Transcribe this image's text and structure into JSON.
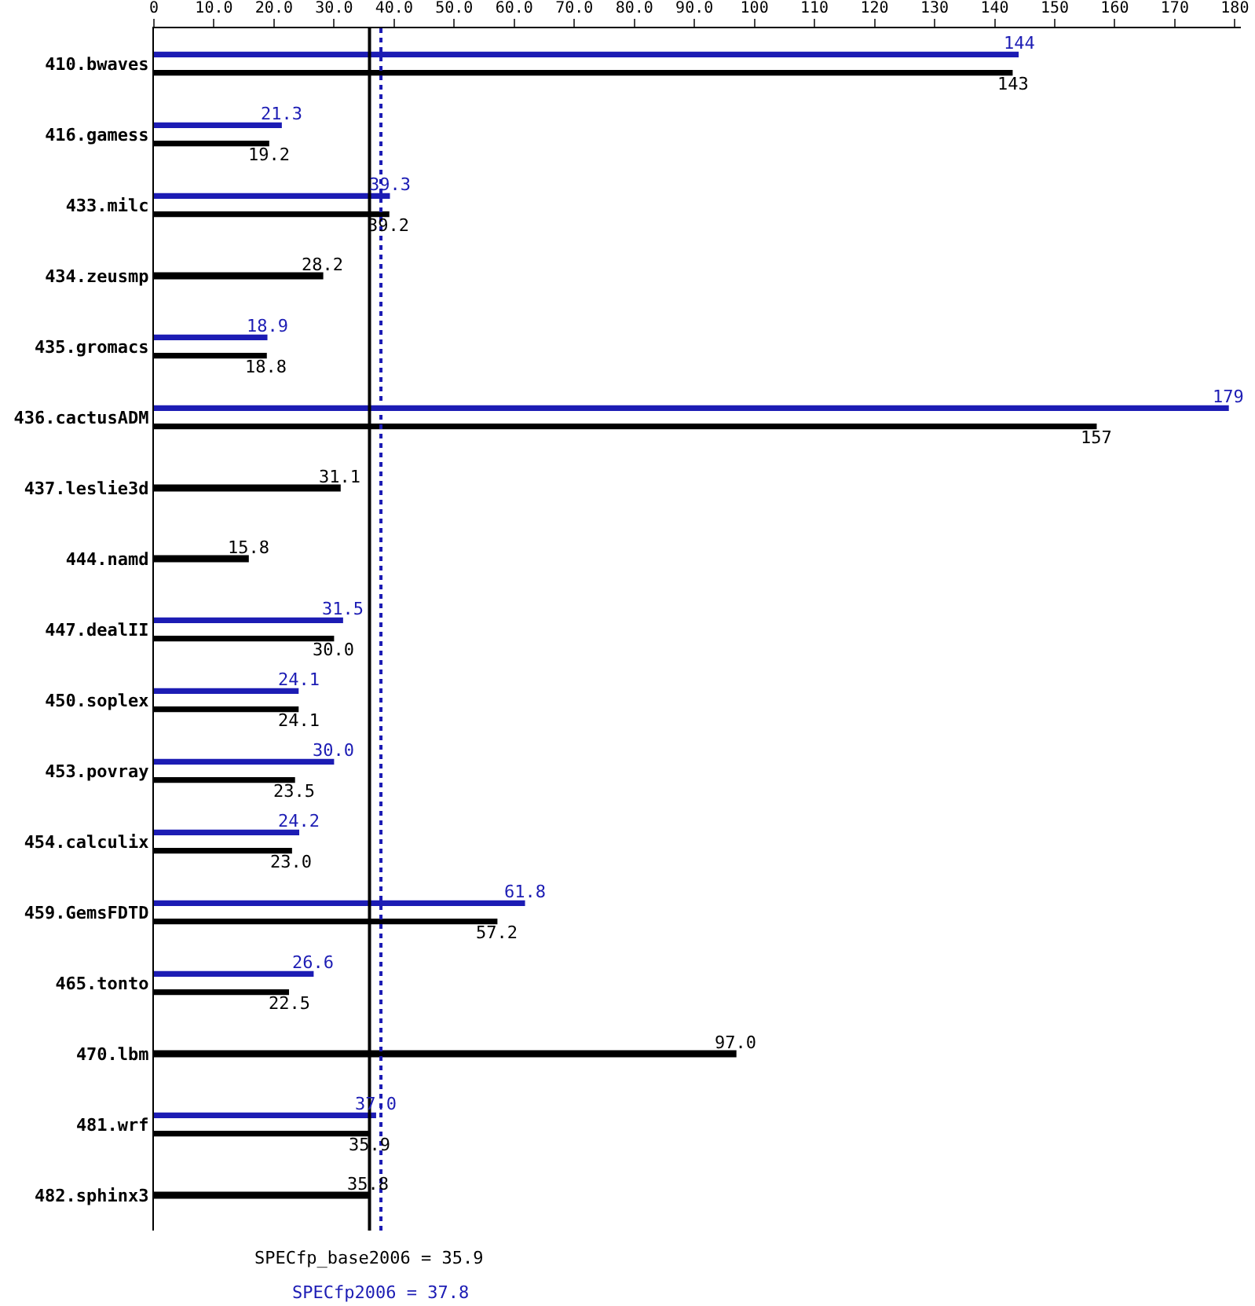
{
  "chart_data": {
    "type": "bar",
    "orientation": "horizontal",
    "categories": [
      "410.bwaves",
      "416.gamess",
      "433.milc",
      "434.zeusmp",
      "435.gromacs",
      "436.cactusADM",
      "437.leslie3d",
      "444.namd",
      "447.dealII",
      "450.soplex",
      "453.povray",
      "454.calculix",
      "459.GemsFDTD",
      "465.tonto",
      "470.lbm",
      "481.wrf",
      "482.sphinx3"
    ],
    "series": [
      {
        "color": "#1c1cb4",
        "values": [
          144,
          21.3,
          39.3,
          null,
          18.9,
          179,
          null,
          null,
          31.5,
          24.1,
          30.0,
          24.2,
          61.8,
          26.6,
          null,
          37.0,
          null
        ],
        "value_labels": [
          "144",
          "21.3",
          "39.3",
          null,
          "18.9",
          "179",
          null,
          null,
          "31.5",
          "24.1",
          "30.0",
          "24.2",
          "61.8",
          "26.6",
          null,
          "37.0",
          null
        ]
      },
      {
        "color": "#000000",
        "values": [
          143,
          19.2,
          39.2,
          28.2,
          18.8,
          157,
          31.1,
          15.8,
          30.0,
          24.1,
          23.5,
          23.0,
          57.2,
          22.5,
          97.0,
          35.9,
          35.8
        ],
        "value_labels": [
          "143",
          "19.2",
          "39.2",
          "28.2",
          "18.8",
          "157",
          "31.1",
          "15.8",
          "30.0",
          "24.1",
          "23.5",
          "23.0",
          "57.2",
          "22.5",
          "97.0",
          "35.9",
          "35.8"
        ]
      }
    ],
    "xlim": [
      0,
      181
    ],
    "xticks": [
      0,
      {
        "value": 10,
        "label": "10.0"
      },
      {
        "value": 20,
        "label": "20.0"
      },
      {
        "value": 30,
        "label": "30.0"
      },
      {
        "value": 40,
        "label": "40.0"
      },
      {
        "value": 50,
        "label": "50.0"
      },
      {
        "value": 60,
        "label": "60.0"
      },
      {
        "value": 70,
        "label": "70.0"
      },
      {
        "value": 80,
        "label": "80.0"
      },
      {
        "value": 90,
        "label": "90.0"
      },
      100,
      110,
      120,
      130,
      140,
      150,
      160,
      170,
      180
    ],
    "ref_lines": [
      {
        "axis": "x",
        "value": 35.9,
        "label": "SPECfp_base2006 = 35.9",
        "color": "#000000",
        "line_style": "solid"
      },
      {
        "axis": "x",
        "value": 37.8,
        "label": "SPECfp2006 = 37.8",
        "color": "#1c1cb4",
        "line_style": "dotted"
      }
    ],
    "grid": false
  }
}
